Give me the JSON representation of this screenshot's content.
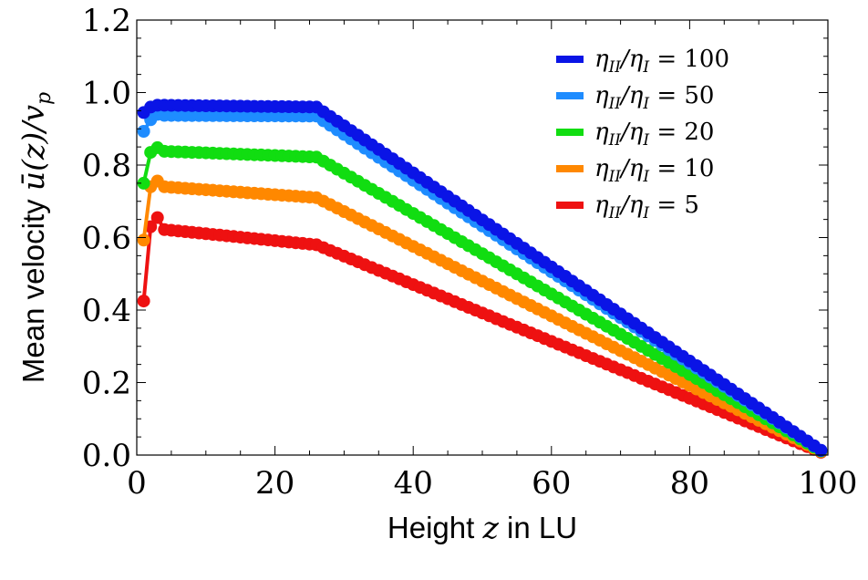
{
  "chart_data": {
    "type": "line",
    "xlabel": "Height z in LU",
    "ylabel": "Mean velocity ū(z)/v_p",
    "xlabel_parts": {
      "pre": "Height ",
      "var": "z",
      "post": " in LU"
    },
    "ylabel_parts": {
      "pre": "Mean velocity ",
      "math": "ū(z)/v",
      "sub": "p"
    },
    "xlim": [
      0,
      100
    ],
    "ylim": [
      0,
      1.2
    ],
    "x_ticks": [
      0,
      20,
      40,
      60,
      80,
      100
    ],
    "x_tick_labels": [
      "0",
      "20",
      "40",
      "60",
      "80",
      "100"
    ],
    "y_ticks": [
      0,
      0.2,
      0.4,
      0.6,
      0.8,
      1.0,
      1.2
    ],
    "y_tick_labels": [
      "0.0",
      "0.2",
      "0.4",
      "0.6",
      "0.8",
      "1.0",
      "1.2"
    ],
    "grid": false,
    "legend_position": "top-right",
    "series": [
      {
        "name": "η_II/η_I = 100",
        "ratio": "100",
        "color": "#0a14e6",
        "near_wall": [
          0.945,
          0.96,
          0.965
        ],
        "plateau_start": 0.965,
        "plateau_end": 0.96
      },
      {
        "name": "η_II/η_I = 50",
        "ratio": "50",
        "color": "#1e8cff",
        "near_wall": [
          0.893,
          0.925,
          0.94
        ],
        "plateau_start": 0.937,
        "plateau_end": 0.935
      },
      {
        "name": "η_II/η_I = 20",
        "ratio": "20",
        "color": "#11dd11",
        "near_wall": [
          0.75,
          0.835,
          0.848
        ],
        "plateau_start": 0.838,
        "plateau_end": 0.822
      },
      {
        "name": "η_II/η_I = 10",
        "ratio": "10",
        "color": "#ff8800",
        "near_wall": [
          0.593,
          0.74,
          0.756
        ],
        "plateau_start": 0.74,
        "plateau_end": 0.71
      },
      {
        "name": "η_II/η_I = 5",
        "ratio": "5",
        "color": "#ee1111",
        "near_wall": [
          0.425,
          0.63,
          0.655
        ],
        "plateau_start": 0.622,
        "plateau_end": 0.58
      }
    ],
    "x_points": {
      "start": 1,
      "end": 99,
      "step": 1,
      "plateau_from": 4,
      "plateau_to": 26
    },
    "legend_math": {
      "eta": "η",
      "sub_num": "II",
      "slash": "/",
      "sub_den": "I",
      "eq": " = "
    }
  }
}
